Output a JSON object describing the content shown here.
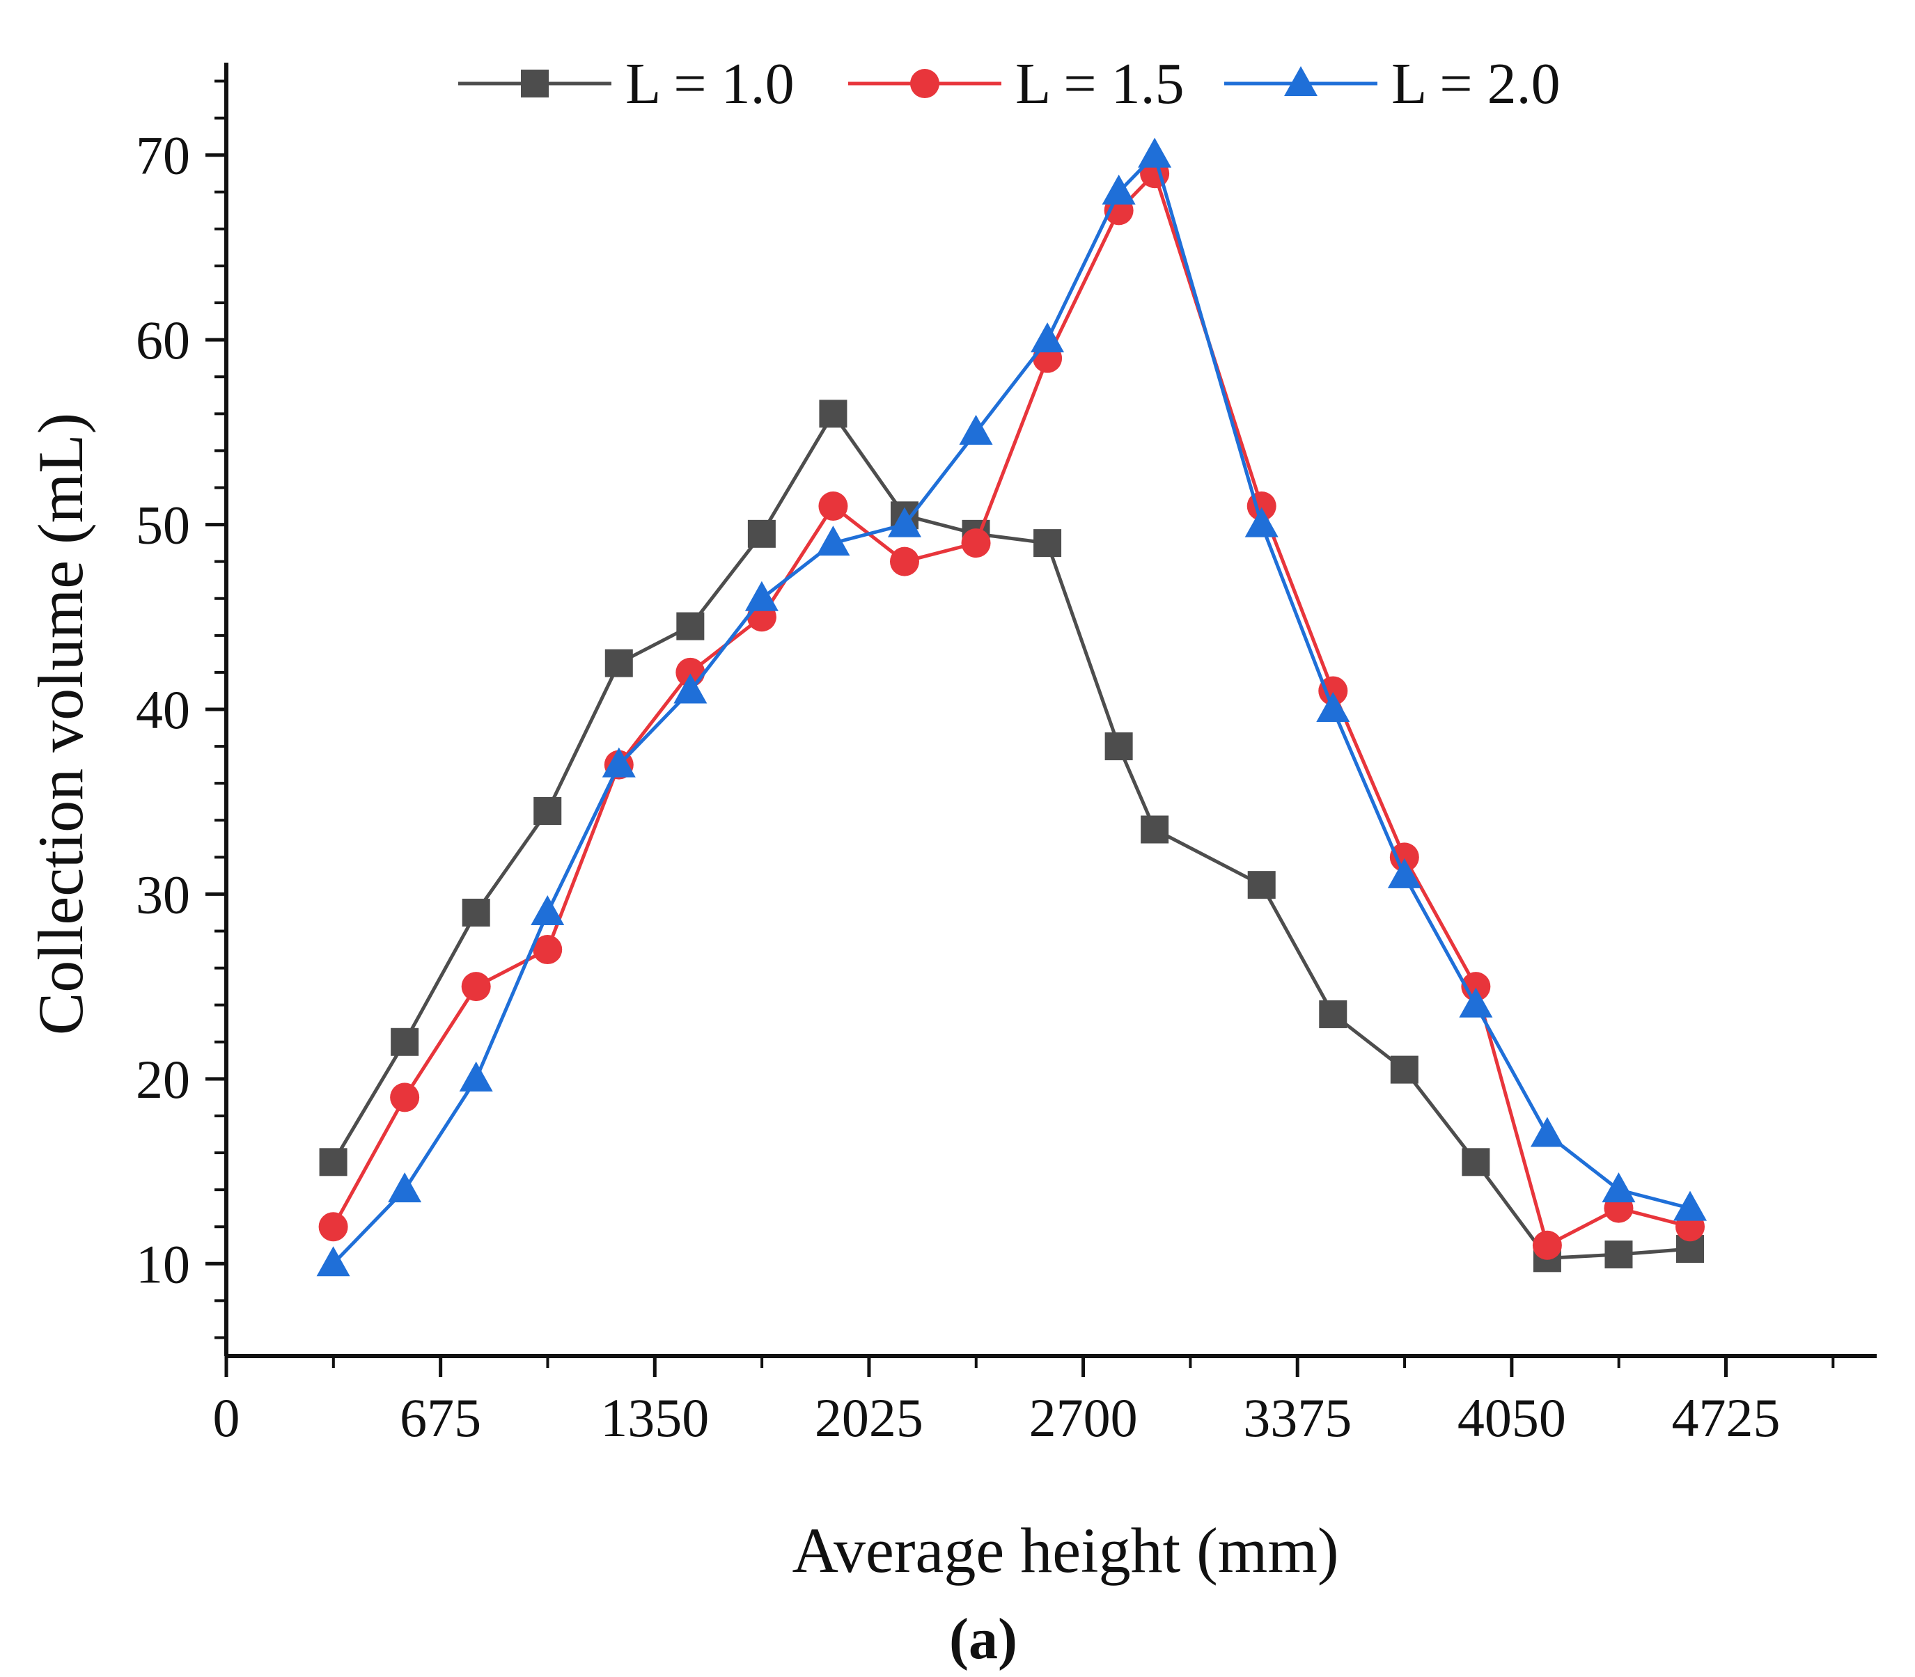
{
  "chart_data": {
    "type": "line",
    "title": "",
    "xlabel": "Average height (mm)",
    "ylabel": "Collection volume (mL)",
    "xlim": [
      0,
      5200
    ],
    "ylim": [
      5,
      75
    ],
    "xticks": [
      0,
      675,
      1350,
      2025,
      2700,
      3375,
      4050,
      4725
    ],
    "xtick_labels": [
      "0",
      "675",
      "1350",
      "2025",
      "2700",
      "3375",
      "4050",
      "4725"
    ],
    "yticks": [
      10,
      20,
      30,
      40,
      50,
      60,
      70
    ],
    "ytick_labels": [
      "10",
      "20",
      "30",
      "40",
      "50",
      "60",
      "70"
    ],
    "grid": false,
    "legend_position": "top",
    "caption": "(a)",
    "series": [
      {
        "name": "L = 1.0",
        "color": "#4d4d4d",
        "marker": "square",
        "x": [
          337,
          562,
          787,
          1012,
          1237,
          1462,
          1687,
          1912,
          2137,
          2362,
          2587,
          2812,
          2925,
          3262,
          3487,
          3712,
          3937,
          4162,
          4387,
          4612
        ],
        "y": [
          15.5,
          22,
          29,
          34.5,
          42.5,
          44.5,
          49.5,
          56,
          50.5,
          49.5,
          49,
          38,
          33.5,
          30.5,
          23.5,
          20.5,
          15.5,
          10.3,
          10.5,
          10.8
        ]
      },
      {
        "name": "L = 1.5",
        "color": "#e8353b",
        "marker": "circle",
        "x": [
          337,
          562,
          787,
          1012,
          1237,
          1462,
          1687,
          1912,
          2137,
          2362,
          2587,
          2812,
          2925,
          3262,
          3487,
          3712,
          3937,
          4162,
          4387,
          4612
        ],
        "y": [
          12,
          19,
          25,
          27,
          37,
          42,
          45,
          51,
          48,
          49,
          59,
          67,
          69,
          51,
          41,
          32,
          25,
          11,
          13,
          12
        ]
      },
      {
        "name": "L = 2.0",
        "color": "#1f6fd8",
        "marker": "triangle",
        "x": [
          337,
          562,
          787,
          1012,
          1237,
          1462,
          1687,
          1912,
          2137,
          2362,
          2587,
          2812,
          2925,
          3262,
          3487,
          3712,
          3937,
          4162,
          4387,
          4612
        ],
        "y": [
          10,
          14,
          20,
          29,
          37,
          41,
          46,
          49,
          50,
          55,
          60,
          68,
          70,
          50,
          40,
          31,
          24,
          17,
          14,
          13
        ]
      }
    ]
  }
}
